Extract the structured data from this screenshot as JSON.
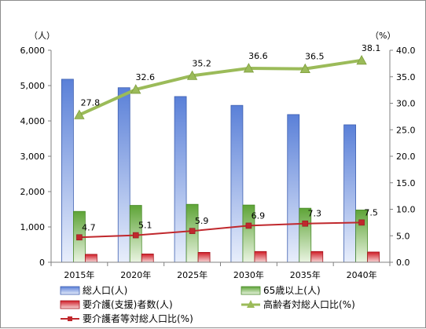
{
  "chart_data": {
    "type": "bar",
    "categories": [
      "2015年",
      "2020年",
      "2025年",
      "2030年",
      "2035年",
      "2040年"
    ],
    "y_left": {
      "unit": "（人）",
      "range": [
        0,
        6000
      ],
      "ticks": [
        "0",
        "1,000",
        "2,000",
        "3,000",
        "4,000",
        "5,000",
        "6,000"
      ]
    },
    "y_right": {
      "unit": "（%）",
      "range": [
        0,
        40
      ],
      "ticks": [
        "0.0",
        "5.0",
        "10.0",
        "15.0",
        "20.0",
        "25.0",
        "30.0",
        "35.0",
        "40.0"
      ]
    },
    "series": [
      {
        "name": "総人口(人)",
        "type": "bar",
        "axis": "left",
        "values": [
          5180,
          4940,
          4690,
          4440,
          4180,
          3890
        ],
        "color": "#5b7fd6"
      },
      {
        "name": "65歳以上(人)",
        "type": "bar",
        "axis": "left",
        "values": [
          1440,
          1610,
          1640,
          1620,
          1530,
          1480
        ],
        "color": "#66b03c"
      },
      {
        "name": "要介護(支援)者数(人)",
        "type": "bar",
        "axis": "left",
        "values": [
          225,
          235,
          280,
          305,
          305,
          290
        ],
        "color": "#d21f2a"
      },
      {
        "name": "高齢者対総人口比(%)",
        "type": "line",
        "axis": "right",
        "values": [
          27.8,
          32.6,
          35.2,
          36.6,
          36.5,
          38.1
        ],
        "labels": [
          "27.8",
          "32.6",
          "35.2",
          "36.6",
          "36.5",
          "38.1"
        ],
        "color": "#9bbb59"
      },
      {
        "name": "要介護者等対総人口比(%)",
        "type": "line",
        "axis": "right",
        "values": [
          4.7,
          5.1,
          5.9,
          6.9,
          7.3,
          7.5
        ],
        "labels": [
          "4.7",
          "5.1",
          "5.9",
          "6.9",
          "7.3",
          "7.5"
        ],
        "color": "#c0282d"
      }
    ],
    "grid": false,
    "legend": "bottom"
  }
}
